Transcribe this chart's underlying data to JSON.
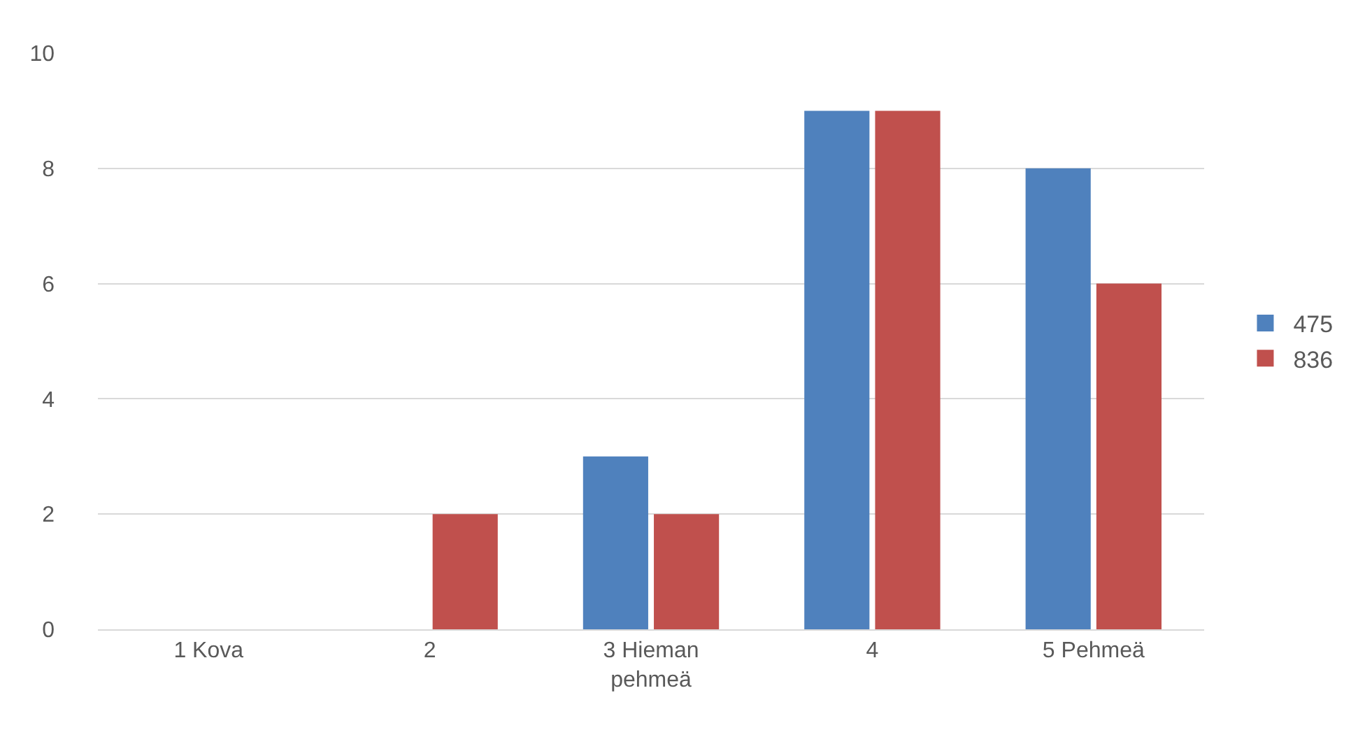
{
  "chart_data": {
    "type": "bar",
    "categories": [
      "1 Kova",
      "2",
      "3 Hieman pehmeä",
      "4",
      "5 Pehmeä"
    ],
    "series": [
      {
        "name": "475",
        "color": "#4f81bd",
        "values": [
          0,
          0,
          3,
          9,
          8
        ]
      },
      {
        "name": "836",
        "color": "#c0504d",
        "values": [
          0,
          2,
          2,
          9,
          6
        ]
      }
    ],
    "ylim": [
      0,
      10
    ],
    "yticks": [
      0,
      2,
      4,
      6,
      8,
      10
    ],
    "grid": "y",
    "legend": "right"
  }
}
